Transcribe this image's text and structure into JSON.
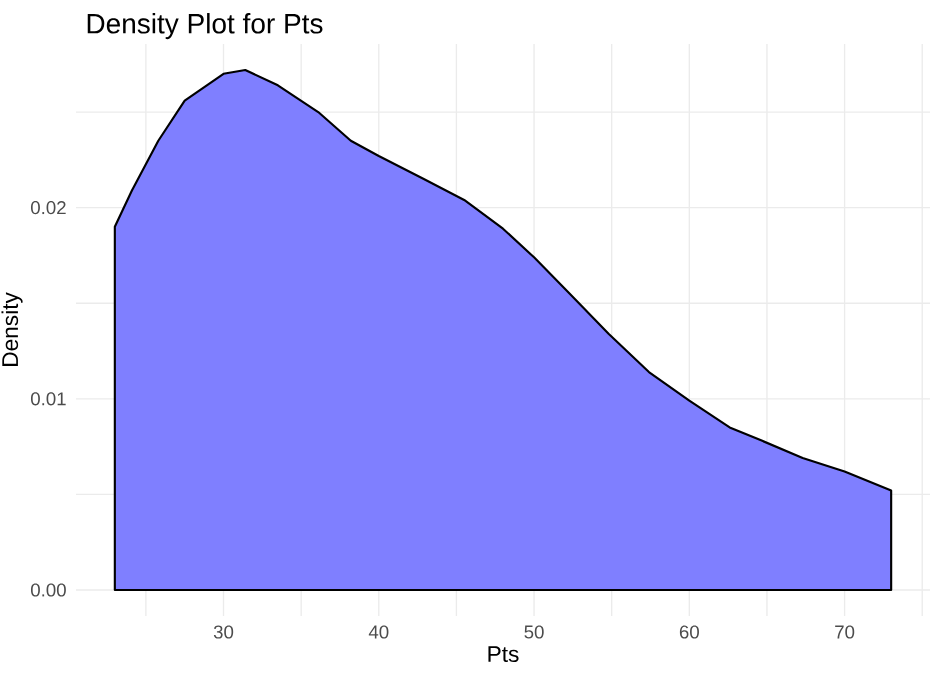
{
  "chart_data": {
    "type": "area",
    "title": "Density Plot for Pts",
    "xlabel": "Pts",
    "ylabel": "Density",
    "x": [
      23.0,
      24.1,
      25.8,
      27.5,
      30.0,
      31.4,
      33.5,
      36.1,
      38.2,
      40.0,
      42.9,
      45.5,
      48.0,
      50.0,
      52.3,
      54.8,
      57.4,
      60.0,
      62.6,
      64.7,
      67.3,
      70.0,
      73.0
    ],
    "series": [
      {
        "color": "#7f7fff",
        "values": [
          0.019,
          0.0209,
          0.0235,
          0.0256,
          0.027,
          0.0272,
          0.0264,
          0.025,
          0.0235,
          0.0227,
          0.0215,
          0.0204,
          0.0189,
          0.0174,
          0.0155,
          0.0134,
          0.0114,
          0.0099,
          0.0085,
          0.0078,
          0.0069,
          0.0062,
          0.0052
        ]
      }
    ],
    "xlim": [
      20.5,
      75.5
    ],
    "xticks": [
      {
        "value": 25,
        "label": null
      },
      30,
      {
        "value": 35,
        "label": null
      },
      40,
      {
        "value": 45,
        "label": null
      },
      50,
      {
        "value": 55,
        "label": null
      },
      60,
      {
        "value": 65,
        "label": null
      },
      70,
      {
        "value": 75,
        "label": null
      }
    ],
    "ylim": [
      -0.00136,
      0.02856
    ],
    "yticks": [
      {
        "value": 0,
        "label": "0.00"
      },
      {
        "value": 0.005,
        "label": null
      },
      {
        "value": 0.01,
        "label": "0.01"
      },
      {
        "value": 0.015,
        "label": null
      },
      {
        "value": 0.02,
        "label": "0.02"
      },
      {
        "value": 0.025,
        "label": null
      }
    ],
    "grid": true
  }
}
